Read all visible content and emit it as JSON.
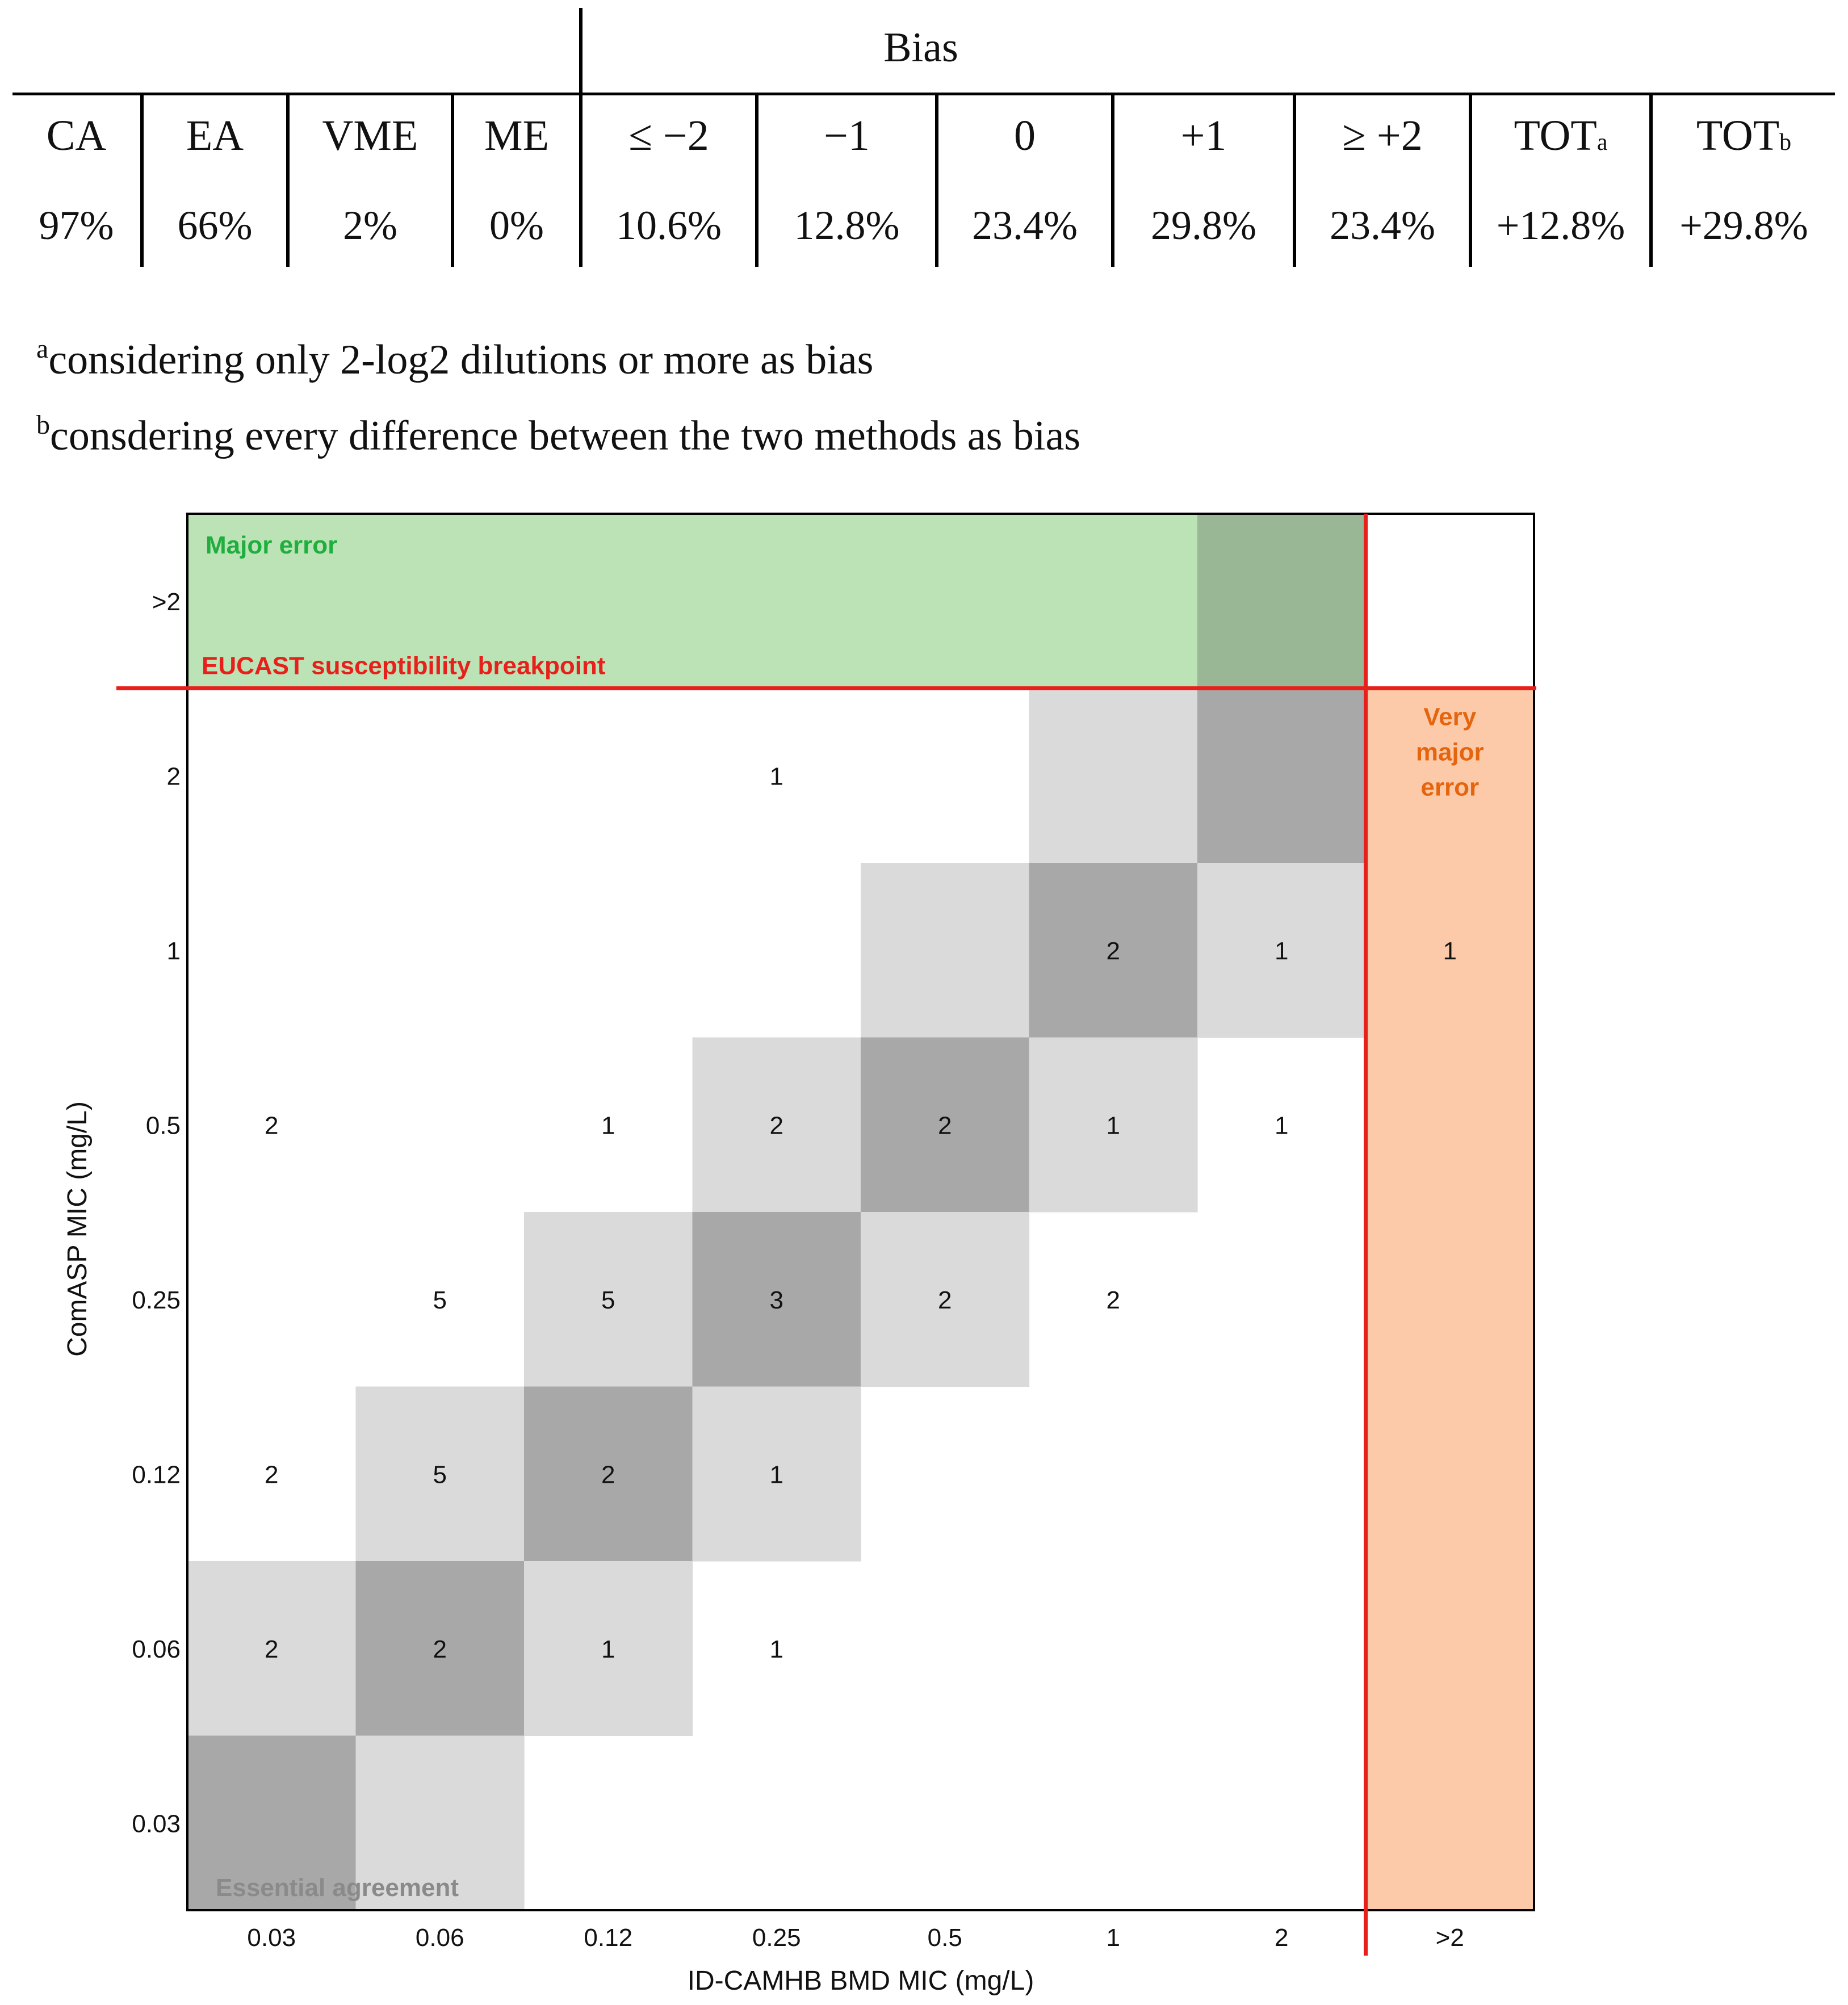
{
  "table": {
    "bias_header": "Bias",
    "columns": [
      {
        "label": "CA",
        "sub": "",
        "value": "97%"
      },
      {
        "label": "EA",
        "sub": "",
        "value": "66%"
      },
      {
        "label": "VME",
        "sub": "",
        "value": "2%"
      },
      {
        "label": "ME",
        "sub": "",
        "value": "0%"
      },
      {
        "label": "≤ −2",
        "sub": "",
        "value": "10.6%"
      },
      {
        "label": "−1",
        "sub": "",
        "value": "12.8%"
      },
      {
        "label": "0",
        "sub": "",
        "value": "23.4%"
      },
      {
        "label": "+1",
        "sub": "",
        "value": "29.8%"
      },
      {
        "label": "≥ +2",
        "sub": "",
        "value": "23.4%"
      },
      {
        "label": "TOT",
        "sub": "a",
        "value": "+12.8%"
      },
      {
        "label": "TOT",
        "sub": "b",
        "value": "+29.8%"
      }
    ]
  },
  "footnotes": [
    {
      "mark": "a",
      "text": "considering only 2-log2 dilutions or more as bias"
    },
    {
      "mark": "b",
      "text": "consdering every difference between the two methods as bias"
    }
  ],
  "chart_data": {
    "type": "heatmap",
    "xlabel": "ID-CAMHB BMD MIC (mg/L)",
    "ylabel": "ComASP MIC (mg/L)",
    "x_categories": [
      "0.03",
      "0.06",
      "0.12",
      "0.25",
      "0.5",
      "1",
      "2",
      ">2"
    ],
    "y_categories": [
      ">2",
      "2",
      "1",
      "0.5",
      "0.25",
      "0.12",
      "0.06",
      "0.03"
    ],
    "counts": [
      {
        "x": "0.25",
        "y": "2",
        "value": 1
      },
      {
        "x": "0.5",
        "y": "1",
        "value": 0
      },
      {
        "x": "1",
        "y": "1",
        "value": 2
      },
      {
        "x": "2",
        "y": "1",
        "value": 1
      },
      {
        "x": ">2",
        "y": "1",
        "value": 1
      },
      {
        "x": "0.03",
        "y": "0.5",
        "value": 2
      },
      {
        "x": "0.12",
        "y": "0.5",
        "value": 1
      },
      {
        "x": "0.25",
        "y": "0.5",
        "value": 2
      },
      {
        "x": "0.5",
        "y": "0.5",
        "value": 2
      },
      {
        "x": "1",
        "y": "0.5",
        "value": 1
      },
      {
        "x": "2",
        "y": "0.5",
        "value": 1
      },
      {
        "x": "0.06",
        "y": "0.25",
        "value": 5
      },
      {
        "x": "0.12",
        "y": "0.25",
        "value": 5
      },
      {
        "x": "0.25",
        "y": "0.25",
        "value": 3
      },
      {
        "x": "0.5",
        "y": "0.25",
        "value": 2
      },
      {
        "x": "1",
        "y": "0.25",
        "value": 2
      },
      {
        "x": "0.03",
        "y": "0.12",
        "value": 2
      },
      {
        "x": "0.06",
        "y": "0.12",
        "value": 5
      },
      {
        "x": "0.12",
        "y": "0.12",
        "value": 2
      },
      {
        "x": "0.25",
        "y": "0.12",
        "value": 1
      },
      {
        "x": "0.03",
        "y": "0.06",
        "value": 2
      },
      {
        "x": "0.06",
        "y": "0.06",
        "value": 2
      },
      {
        "x": "0.12",
        "y": "0.06",
        "value": 1
      },
      {
        "x": "0.25",
        "y": "0.06",
        "value": 1
      }
    ],
    "regions": {
      "major_error": "Major error",
      "very_major_error": [
        "Very",
        "major",
        "error"
      ],
      "essential_agreement": "Essential agreement",
      "breakpoint": "EUCAST  susceptibility breakpoint"
    },
    "colors": {
      "agreement": "#a8a8a8",
      "essential": "#dadada",
      "major_error": "#bce3b5",
      "major_overlap": "#99b795",
      "very_major": "#fdcaa9",
      "breakpoint_line": "#e8201c",
      "major_text": "#1fae3f",
      "very_major_text": "#e5650f",
      "essential_text": "#8a8a8a"
    }
  }
}
